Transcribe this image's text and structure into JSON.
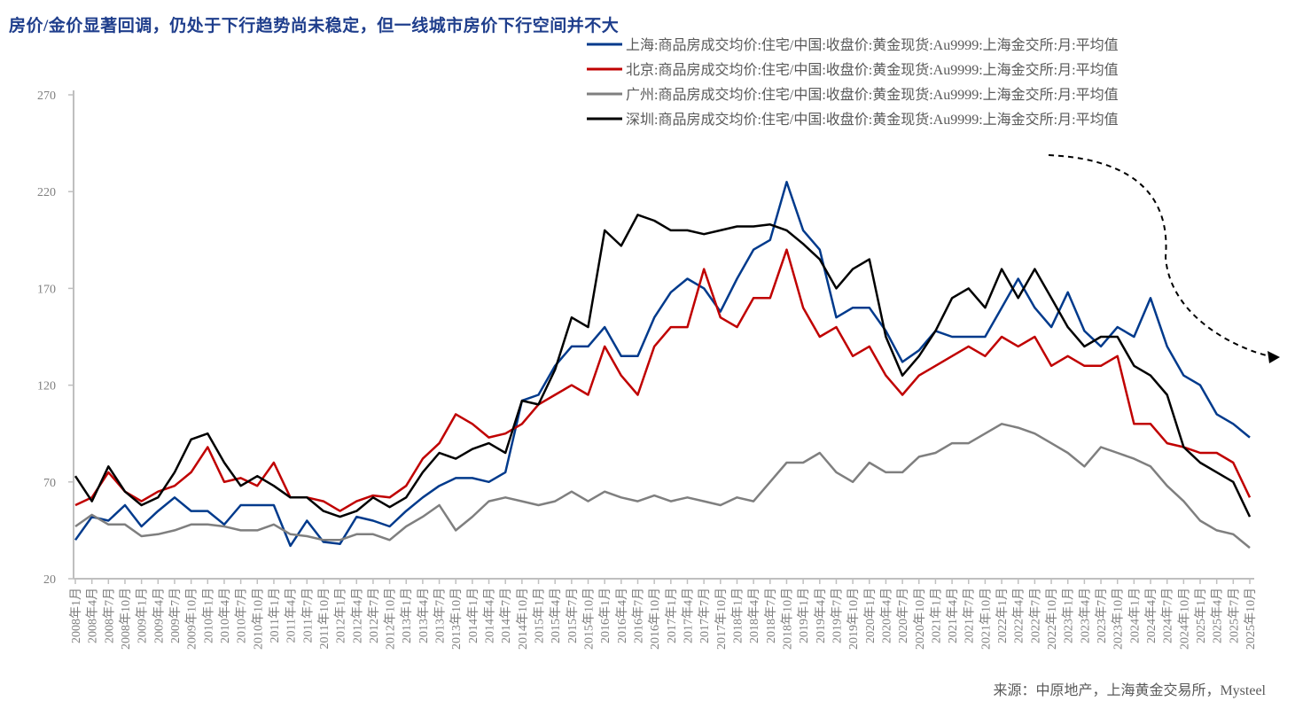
{
  "title": "房价/金价显著回调，仍处于下行趋势尚未稳定，但一线城市房价下行空间并不大",
  "source": "来源：中原地产，上海黄金交易所，Mysteel",
  "chart_data": {
    "type": "line",
    "title": "房价/金价显著回调，仍处于下行趋势尚未稳定，但一线城市房价下行空间并不大",
    "ylim": [
      20,
      270
    ],
    "yticks": [
      "20",
      "70",
      "120",
      "170",
      "220",
      "270"
    ],
    "grid": false,
    "legend_position": "top-right",
    "x": [
      "2008年1月",
      "2008年4月",
      "2008年7月",
      "2008年10月",
      "2009年1月",
      "2009年4月",
      "2009年7月",
      "2009年10月",
      "2010年1月",
      "2010年4月",
      "2010年7月",
      "2010年10月",
      "2011年1月",
      "2011年4月",
      "2011年7月",
      "2011年10月",
      "2012年1月",
      "2012年4月",
      "2012年7月",
      "2012年10月",
      "2013年1月",
      "2013年4月",
      "2013年7月",
      "2013年10月",
      "2014年1月",
      "2014年4月",
      "2014年7月",
      "2014年10月",
      "2015年1月",
      "2015年4月",
      "2015年7月",
      "2015年10月",
      "2016年1月",
      "2016年4月",
      "2016年7月",
      "2016年10月",
      "2017年1月",
      "2017年4月",
      "2017年7月",
      "2017年10月",
      "2018年1月",
      "2018年4月",
      "2018年7月",
      "2018年10月",
      "2019年1月",
      "2019年4月",
      "2019年7月",
      "2019年10月",
      "2020年1月",
      "2020年4月",
      "2020年7月",
      "2020年10月",
      "2021年1月",
      "2021年4月",
      "2021年7月",
      "2021年10月",
      "2022年1月",
      "2022年4月",
      "2022年7月",
      "2022年10月",
      "2023年1月",
      "2023年4月",
      "2023年7月",
      "2023年10月",
      "2024年1月",
      "2024年4月",
      "2024年7月",
      "2024年10月",
      "2025年1月",
      "2025年4月",
      "2025年7月",
      "2025年10月"
    ],
    "series": [
      {
        "name": "上海:商品房成交均价:住宅/中国:收盘价:黄金现货:Au9999:上海金交所:月:平均值",
        "color": "#003A8C",
        "values": [
          40,
          52,
          50,
          58,
          47,
          55,
          62,
          55,
          55,
          48,
          58,
          58,
          58,
          37,
          50,
          39,
          38,
          52,
          50,
          47,
          55,
          62,
          68,
          72,
          72,
          70,
          75,
          112,
          115,
          130,
          140,
          140,
          150,
          135,
          135,
          155,
          168,
          175,
          170,
          158,
          175,
          190,
          195,
          225,
          200,
          190,
          155,
          160,
          160,
          148,
          132,
          138,
          148,
          145,
          145,
          145,
          160,
          175,
          160,
          150,
          168,
          148,
          140,
          150,
          145,
          165,
          140,
          125,
          120,
          105,
          100,
          93
        ]
      },
      {
        "name": "北京:商品房成交均价:住宅/中国:收盘价:黄金现货:Au9999:上海金交所:月:平均值",
        "color": "#C00000",
        "values": [
          58,
          62,
          75,
          65,
          60,
          65,
          68,
          75,
          88,
          70,
          72,
          68,
          80,
          62,
          62,
          60,
          55,
          60,
          63,
          62,
          68,
          82,
          90,
          105,
          100,
          93,
          95,
          100,
          110,
          115,
          120,
          115,
          140,
          125,
          115,
          140,
          150,
          150,
          180,
          155,
          150,
          165,
          165,
          190,
          160,
          145,
          150,
          135,
          140,
          125,
          115,
          125,
          130,
          135,
          140,
          135,
          145,
          140,
          145,
          130,
          135,
          130,
          130,
          135,
          100,
          100,
          90,
          88,
          85,
          85,
          80,
          62
        ]
      },
      {
        "name": "广州:商品房成交均价:住宅/中国:收盘价:黄金现货:Au9999:上海金交所:月:平均值",
        "color": "#7F7F7F",
        "values": [
          47,
          53,
          48,
          48,
          42,
          43,
          45,
          48,
          48,
          47,
          45,
          45,
          48,
          43,
          42,
          40,
          40,
          43,
          43,
          40,
          47,
          52,
          58,
          45,
          52,
          60,
          62,
          60,
          58,
          60,
          65,
          60,
          65,
          62,
          60,
          63,
          60,
          62,
          60,
          58,
          62,
          60,
          70,
          80,
          80,
          85,
          75,
          70,
          80,
          75,
          75,
          83,
          85,
          90,
          90,
          95,
          100,
          98,
          95,
          90,
          85,
          78,
          88,
          85,
          82,
          78,
          68,
          60,
          50,
          45,
          43,
          36
        ]
      },
      {
        "name": "深圳:商品房成交均价:住宅/中国:收盘价:黄金现货:Au9999:上海金交所:月:平均值",
        "color": "#000000",
        "values": [
          73,
          60,
          78,
          65,
          58,
          62,
          75,
          92,
          95,
          80,
          68,
          73,
          68,
          62,
          62,
          55,
          52,
          55,
          62,
          57,
          62,
          75,
          85,
          82,
          87,
          90,
          85,
          112,
          110,
          128,
          155,
          150,
          200,
          192,
          208,
          205,
          200,
          200,
          198,
          200,
          202,
          202,
          203,
          200,
          193,
          185,
          170,
          180,
          185,
          145,
          125,
          135,
          148,
          165,
          170,
          160,
          180,
          165,
          180,
          165,
          150,
          140,
          145,
          145,
          130,
          125,
          115,
          88,
          80,
          75,
          70,
          52
        ]
      }
    ]
  }
}
